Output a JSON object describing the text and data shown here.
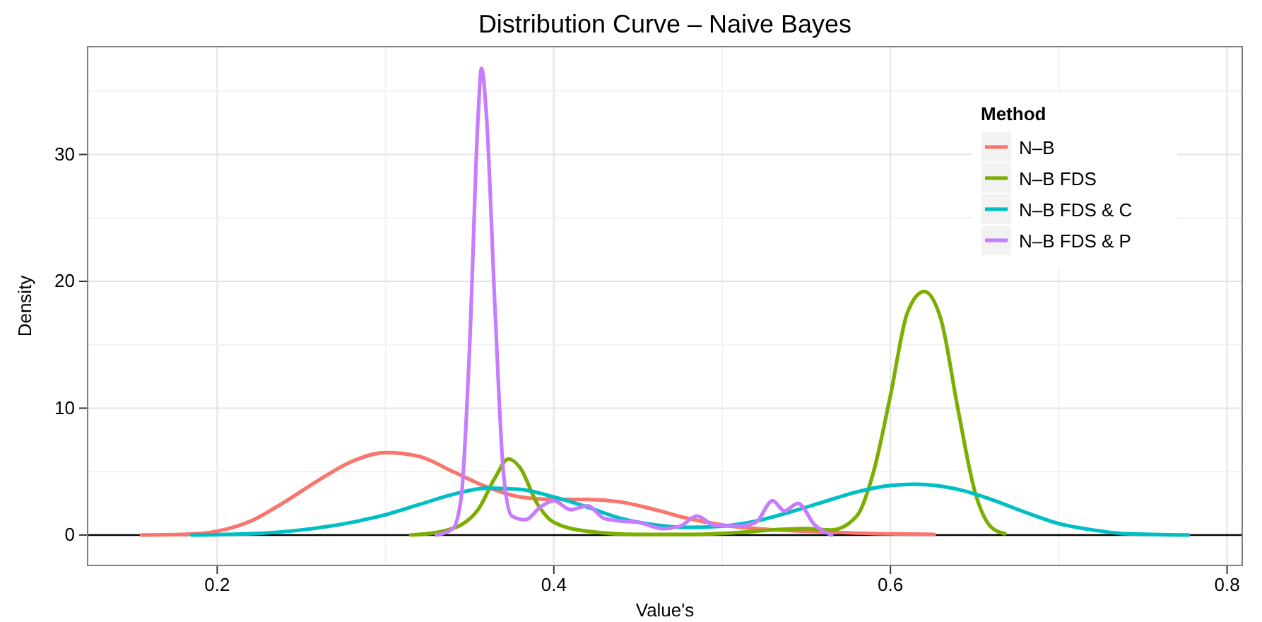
{
  "chart_data": {
    "type": "line",
    "title": "Distribution Curve – Naive Bayes",
    "xlabel": "Value's",
    "ylabel": "Density",
    "legend_title": "Method",
    "legend": "top right",
    "grid": true,
    "xlim": [
      0.123,
      0.809
    ],
    "xticks": [
      0.2,
      0.4,
      0.6,
      0.8
    ],
    "ylim": [
      -2.4,
      38.5
    ],
    "yticks": [
      0,
      10,
      20,
      30
    ],
    "ref_lines": [
      {
        "axis": "y",
        "value": 0,
        "color": "#000000"
      }
    ],
    "series": [
      {
        "name": "N–B",
        "color": "#f8766d",
        "x": [
          0.155,
          0.18,
          0.2,
          0.22,
          0.24,
          0.26,
          0.28,
          0.3,
          0.32,
          0.34,
          0.36,
          0.38,
          0.4,
          0.42,
          0.44,
          0.46,
          0.48,
          0.5,
          0.52,
          0.55,
          0.58,
          0.626
        ],
        "values": [
          0,
          0.05,
          0.3,
          1.1,
          2.6,
          4.3,
          5.8,
          6.5,
          6.2,
          5.0,
          3.8,
          3.0,
          2.8,
          2.8,
          2.6,
          2.0,
          1.3,
          0.8,
          0.5,
          0.3,
          0.15,
          0.05
        ]
      },
      {
        "name": "N–B FDS",
        "color": "#7cae00",
        "x": [
          0.315,
          0.33,
          0.345,
          0.355,
          0.365,
          0.373,
          0.38,
          0.39,
          0.4,
          0.42,
          0.45,
          0.48,
          0.51,
          0.53,
          0.55,
          0.565,
          0.58,
          0.59,
          0.6,
          0.61,
          0.62,
          0.63,
          0.64,
          0.65,
          0.66,
          0.668
        ],
        "values": [
          0,
          0.2,
          0.8,
          2.0,
          4.5,
          6.0,
          5.3,
          2.5,
          1.0,
          0.3,
          0.05,
          0.05,
          0.2,
          0.4,
          0.5,
          0.4,
          1.5,
          5.0,
          11,
          17.5,
          19.2,
          17,
          10,
          3.5,
          0.6,
          0.1
        ]
      },
      {
        "name": "N–B FDS & C",
        "color": "#00bfc4",
        "x": [
          0.185,
          0.22,
          0.25,
          0.28,
          0.3,
          0.32,
          0.34,
          0.36,
          0.38,
          0.4,
          0.42,
          0.44,
          0.46,
          0.48,
          0.5,
          0.52,
          0.54,
          0.56,
          0.58,
          0.6,
          0.615,
          0.64,
          0.66,
          0.68,
          0.7,
          0.72,
          0.74,
          0.777
        ],
        "values": [
          0,
          0.1,
          0.4,
          1.0,
          1.6,
          2.4,
          3.2,
          3.7,
          3.6,
          3.0,
          2.2,
          1.3,
          0.8,
          0.6,
          0.7,
          1.1,
          1.8,
          2.6,
          3.4,
          3.9,
          4.0,
          3.6,
          2.8,
          1.8,
          0.9,
          0.4,
          0.1,
          0
        ]
      },
      {
        "name": "N–B FDS & P",
        "color": "#c77cff",
        "x": [
          0.33,
          0.34,
          0.345,
          0.35,
          0.355,
          0.357,
          0.36,
          0.365,
          0.37,
          0.375,
          0.383,
          0.392,
          0.4,
          0.41,
          0.42,
          0.43,
          0.44,
          0.45,
          0.465,
          0.475,
          0.485,
          0.495,
          0.51,
          0.52,
          0.53,
          0.537,
          0.545,
          0.555,
          0.565
        ],
        "values": [
          0,
          0.5,
          3,
          15,
          33,
          36.8,
          33,
          18,
          5,
          1.5,
          1.2,
          2.2,
          2.7,
          2.0,
          2.3,
          1.3,
          1.1,
          1.0,
          0.5,
          0.7,
          1.5,
          0.8,
          0.7,
          1.0,
          2.7,
          1.9,
          2.5,
          0.8,
          0
        ]
      }
    ]
  }
}
